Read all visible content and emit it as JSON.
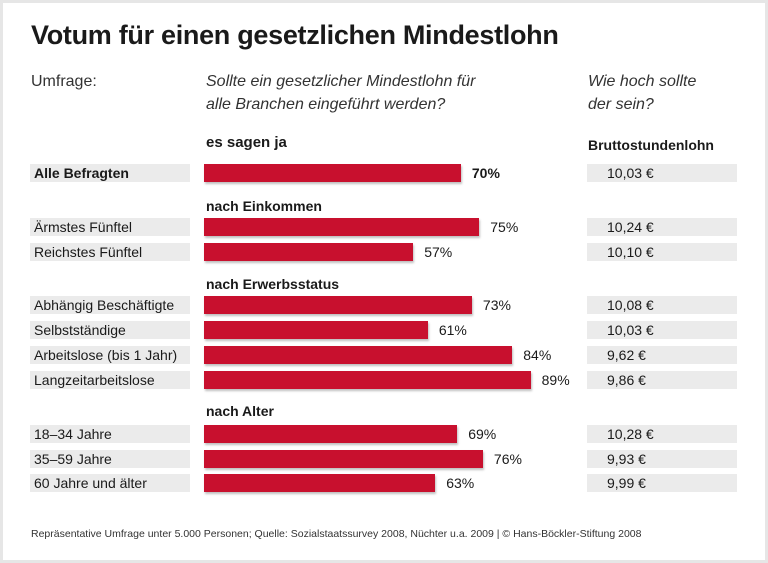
{
  "chart_data": {
    "type": "bar",
    "orientation": "horizontal",
    "title": "Votum für einen gesetzlichen Mindestlohn",
    "survey_label": "Umfrage:",
    "question": "Sollte ein gesetzlicher Mindestlohn für alle Branchen eingeführt werden?",
    "question_lines": [
      "Sollte ein gesetzlicher Mindestlohn für",
      "alle Branchen eingeführt werden?"
    ],
    "question2_lines": [
      "Wie hoch sollte",
      "der sein?"
    ],
    "bar_header": "es sagen ja",
    "wage_header": "Bruttostundenlohn",
    "unit": "%",
    "bar_color": "#c8102e",
    "groups": [
      {
        "name": "",
        "rows": [
          {
            "label": "Alle Befragten",
            "value": 70,
            "value_label": "70%",
            "wage": "10,03 €",
            "bold": true
          }
        ]
      },
      {
        "name": "nach Einkommen",
        "rows": [
          {
            "label": "Ärmstes Fünftel",
            "value": 75,
            "value_label": "75%",
            "wage": "10,24 €"
          },
          {
            "label": "Reichstes Fünftel",
            "value": 57,
            "value_label": "57%",
            "wage": "10,10 €"
          }
        ]
      },
      {
        "name": "nach Erwerbsstatus",
        "rows": [
          {
            "label": "Abhängig Beschäftigte",
            "value": 73,
            "value_label": "73%",
            "wage": "10,08 €"
          },
          {
            "label": "Selbstständige",
            "value": 61,
            "value_label": "61%",
            "wage": "10,03 €"
          },
          {
            "label": "Arbeitslose (bis 1 Jahr)",
            "value": 84,
            "value_label": "84%",
            "wage": "9,62 €"
          },
          {
            "label": "Langzeitarbeitslose",
            "value": 89,
            "value_label": "89%",
            "wage": "9,86 €"
          }
        ]
      },
      {
        "name": "nach Alter",
        "rows": [
          {
            "label": "18–34 Jahre",
            "value": 69,
            "value_label": "69%",
            "wage": "10,28 €"
          },
          {
            "label": "35–59 Jahre",
            "value": 76,
            "value_label": "76%",
            "wage": "9,93 €"
          },
          {
            "label": "60 Jahre und älter",
            "value": 63,
            "value_label": "63%",
            "wage": "9,99 €"
          }
        ]
      }
    ],
    "footnote": "Repräsentative Umfrage unter 5.000 Personen; Quelle: Sozialstaatssurvey 2008, Nüchter u.a. 2009 | © Hans-Böckler-Stiftung 2008"
  }
}
